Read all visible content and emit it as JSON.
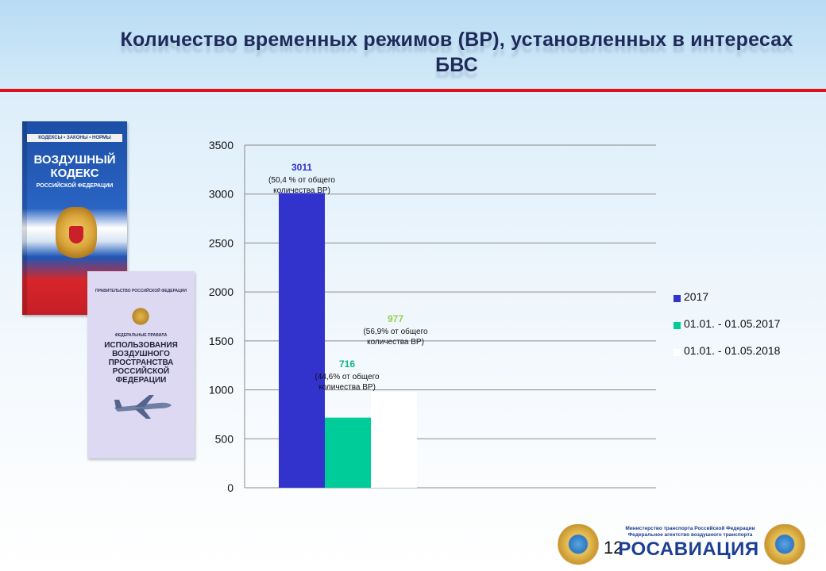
{
  "slide": {
    "title_line1": "Количество временных режимов (ВР), установленных в интересах",
    "title_line2": "БВС",
    "page_number": "12"
  },
  "book1": {
    "strip": "КОДЕКСЫ • ЗАКОНЫ • НОРМЫ",
    "title_line1": "ВОЗДУШНЫЙ",
    "title_line2": "КОДЕКС",
    "subtitle": "РОССИЙСКОЙ ФЕДЕРАЦИИ"
  },
  "book2": {
    "publisher": "ПРАВИТЕЛЬСТВО РОССИЙСКОЙ ФЕДЕРАЦИИ",
    "subtitle": "ФЕДЕРАЛЬНЫЕ ПРАВИЛА",
    "title_line1": "ИСПОЛЬЗОВАНИЯ",
    "title_line2": "ВОЗДУШНОГО",
    "title_line3": "ПРОСТРАНСТВА",
    "title_line4": "РОССИЙСКОЙ ФЕДЕРАЦИИ"
  },
  "logo": {
    "ministry_line1": "Министерство транспорта Российской Федерации",
    "ministry_line2": "Федеральное агентство воздушного транспорта",
    "name": "РОСАВИАЦИЯ"
  },
  "chart_data": {
    "type": "bar",
    "ylim": [
      0,
      3500
    ],
    "yticks": [
      0,
      500,
      1000,
      1500,
      2000,
      2500,
      3000,
      3500
    ],
    "grid": true,
    "legend_position": "right",
    "series": [
      {
        "name": "2017",
        "value": 3011,
        "color": "#3232cc",
        "label_color": "#3232cc",
        "label_value": "3011",
        "label_note_line1": "(50,4 % от общего",
        "label_note_line2": "количества ВР)"
      },
      {
        "name": "01.01. - 01.05.2017",
        "value": 716,
        "color": "#00cc99",
        "label_color": "#12b38a",
        "label_value": "716",
        "label_note_line1": "(44,6% от общего",
        "label_note_line2": "количества ВР)"
      },
      {
        "name": "01.01. - 01.05.2018",
        "value": 977,
        "color": "#ffffff",
        "label_color": "#92d050",
        "label_value": "977",
        "label_note_line1": "(56,9% от общего",
        "label_note_line2": "количества ВР)"
      }
    ]
  }
}
